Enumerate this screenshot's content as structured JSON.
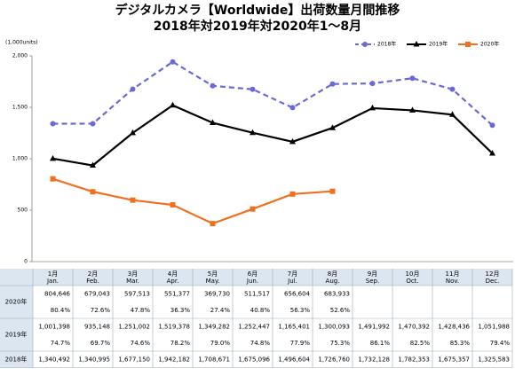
{
  "chart_data": {
    "type": "line",
    "title": "デジタルカメラ【Worldwide】出荷数量月間推移",
    "subtitle": "2018年対2019年対2020年1～8月",
    "y_axis_label": "(1,000units)",
    "categories": [
      "1月",
      "2月",
      "3月",
      "4月",
      "5月",
      "6月",
      "7月",
      "8月",
      "9月",
      "10月",
      "11月",
      "12月"
    ],
    "categories_en": [
      "Jan.",
      "Feb.",
      "Mar.",
      "Apr.",
      "May.",
      "Jun.",
      "Jul.",
      "Aug.",
      "Sep.",
      "Oct.",
      "Nov.",
      "Dec."
    ],
    "ylim": [
      0,
      2000
    ],
    "yticks": [
      0,
      500,
      {
        "value": 1000,
        "label": "1,000"
      },
      {
        "value": 1500,
        "label": "1,500"
      },
      {
        "value": 2000,
        "label": "2,000"
      }
    ],
    "legend": "top-right",
    "series": [
      {
        "name": "2020年",
        "color": "#f07020",
        "marker": "square",
        "dash": false,
        "values": [
          804.646,
          679.043,
          597.513,
          551.377,
          369.73,
          511.517,
          656.604,
          683.933,
          null,
          null,
          null,
          null
        ],
        "value_labels": [
          "804,646",
          "679,043",
          "597,513",
          "551,377",
          "369,730",
          "511,517",
          "656,604",
          "683,933",
          null,
          null,
          null,
          null
        ],
        "ratio_labels": [
          "80.4%",
          "72.6%",
          "47.8%",
          "36.3%",
          "27.4%",
          "40.8%",
          "56.3%",
          "52.6%",
          null,
          null,
          null,
          null
        ]
      },
      {
        "name": "2019年",
        "color": "#000000",
        "marker": "triangle",
        "dash": false,
        "values": [
          1001.398,
          935.148,
          1251.002,
          1519.378,
          1349.282,
          1252.447,
          1165.401,
          1300.093,
          1491.992,
          1470.392,
          1428.436,
          1051.988
        ],
        "value_labels": [
          "1,001,398",
          "935,148",
          "1,251,002",
          "1,519,378",
          "1,349,282",
          "1,252,447",
          "1,165,401",
          "1,300,093",
          "1,491,992",
          "1,470,392",
          "1,428,436",
          "1,051,988"
        ],
        "ratio_labels": [
          "74.7%",
          "69.7%",
          "74.6%",
          "78.2%",
          "79.0%",
          "74.8%",
          "77.9%",
          "75.3%",
          "86.1%",
          "82.5%",
          "85.3%",
          "79.4%"
        ]
      },
      {
        "name": "2018年",
        "color": "#6a6ad6",
        "marker": "circle",
        "dash": true,
        "values": [
          1340.492,
          1340.995,
          1677.15,
          1942.182,
          1708.671,
          1675.096,
          1496.604,
          1726.76,
          1732.128,
          1782.353,
          1675.357,
          1325.583
        ],
        "value_labels": [
          "1,340,492",
          "1,340,995",
          "1,677,150",
          "1,942,182",
          "1,708,671",
          "1,675,096",
          "1,496,604",
          "1,726,760",
          "1,732,128",
          "1,782,353",
          "1,675,357",
          "1,325,583"
        ]
      }
    ]
  }
}
